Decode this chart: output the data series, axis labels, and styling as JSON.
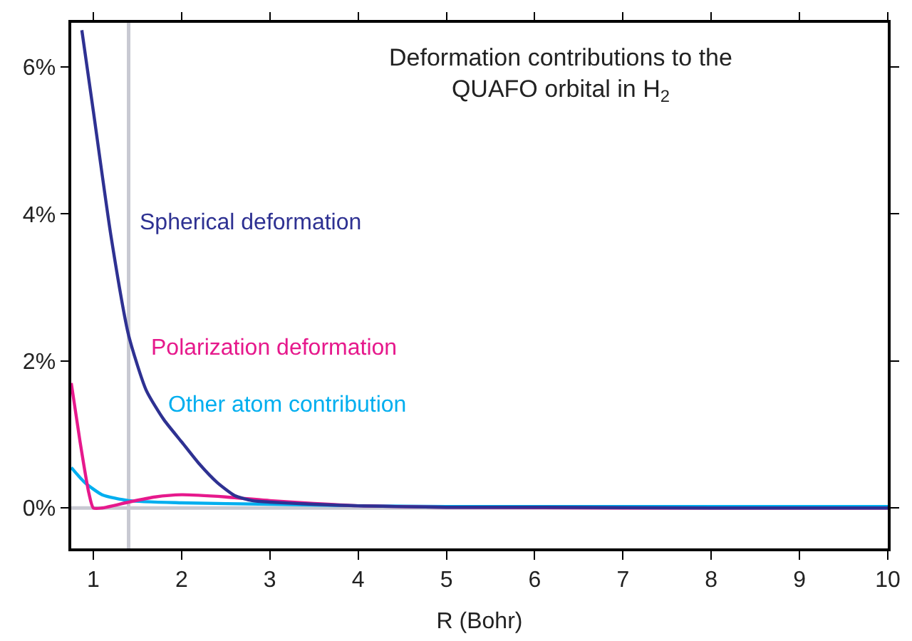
{
  "chart_data": {
    "type": "line",
    "title": "Deformation contributions to the\nQUAFO orbital in H$_{2}$",
    "xlabel": "R (Bohr)",
    "xlim": [
      0.75,
      10
    ],
    "xticks": [
      1,
      2,
      3,
      4,
      5,
      6,
      7,
      8,
      9,
      10
    ],
    "ylim": [
      -0.55,
      6.6
    ],
    "yticks": [
      {
        "value": 0,
        "label": "0%"
      },
      {
        "value": 2,
        "label": "2%"
      },
      {
        "value": 4,
        "label": "4%"
      },
      {
        "value": 6,
        "label": "6%"
      }
    ],
    "grid": false,
    "legend": false,
    "ref_lines": [
      {
        "axis": "x",
        "value": 1.4,
        "color": "#c8c9d2"
      },
      {
        "axis": "y",
        "value": 0,
        "color": "#c8c9d2"
      }
    ],
    "series": [
      {
        "name": "Spherical deformation",
        "color": "#2e3192",
        "x": [
          0.87,
          1.0,
          1.2,
          1.4,
          1.6,
          1.8,
          2.0,
          2.2,
          2.4,
          2.6,
          2.8,
          3.0,
          3.5,
          4,
          5,
          6,
          8,
          10
        ],
        "values": [
          6.5,
          5.4,
          3.7,
          2.35,
          1.6,
          1.2,
          0.9,
          0.6,
          0.35,
          0.17,
          0.1,
          0.08,
          0.05,
          0.03,
          0.01,
          0.01,
          0,
          0
        ]
      },
      {
        "name": "Polarization deformation",
        "color": "#e6198c",
        "x": [
          0.75,
          0.85,
          0.95,
          1.0,
          1.1,
          1.4,
          1.7,
          2.0,
          2.5,
          3,
          3.5,
          4,
          5,
          7,
          10
        ],
        "values": [
          1.7,
          0.9,
          0.2,
          0.0,
          0.0,
          0.08,
          0.15,
          0.18,
          0.15,
          0.1,
          0.06,
          0.03,
          0.01,
          0,
          0
        ]
      },
      {
        "name": "Other atom contribution",
        "color": "#00aeef",
        "x": [
          0.75,
          0.9,
          1.1,
          1.4,
          2,
          3,
          4,
          5,
          7,
          10
        ],
        "values": [
          0.55,
          0.35,
          0.18,
          0.1,
          0.07,
          0.05,
          0.03,
          0.02,
          0.02,
          0.02
        ]
      }
    ]
  }
}
